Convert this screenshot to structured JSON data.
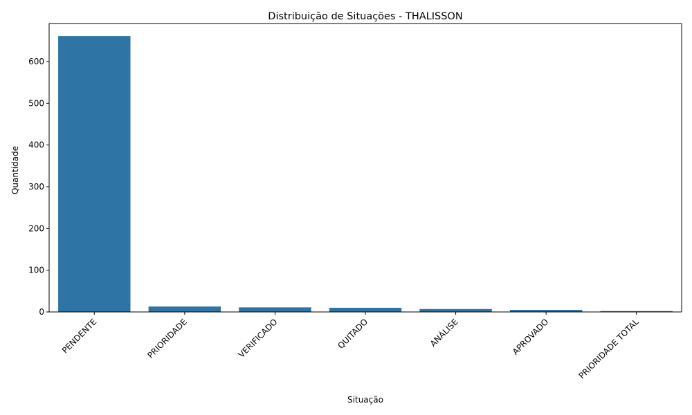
{
  "chart_data": {
    "type": "bar",
    "title": "Distribuição de Situações - THALISSON",
    "xlabel": "Situação",
    "ylabel": "Quantidade",
    "categories": [
      "PENDENTE",
      "PRIORIDADE",
      "VERIFICADO",
      "QUITADO",
      "ANÁLISE",
      "APROVADO",
      "PRIORIDADE TOTAL"
    ],
    "values": [
      661,
      13,
      11,
      10,
      7,
      5,
      2
    ],
    "ylim": [
      0,
      691
    ],
    "yticks": [
      0,
      100,
      200,
      300,
      400,
      500,
      600
    ],
    "bar_color": "#2e75a6",
    "grid": false,
    "x_tick_rotation_deg": 45
  }
}
